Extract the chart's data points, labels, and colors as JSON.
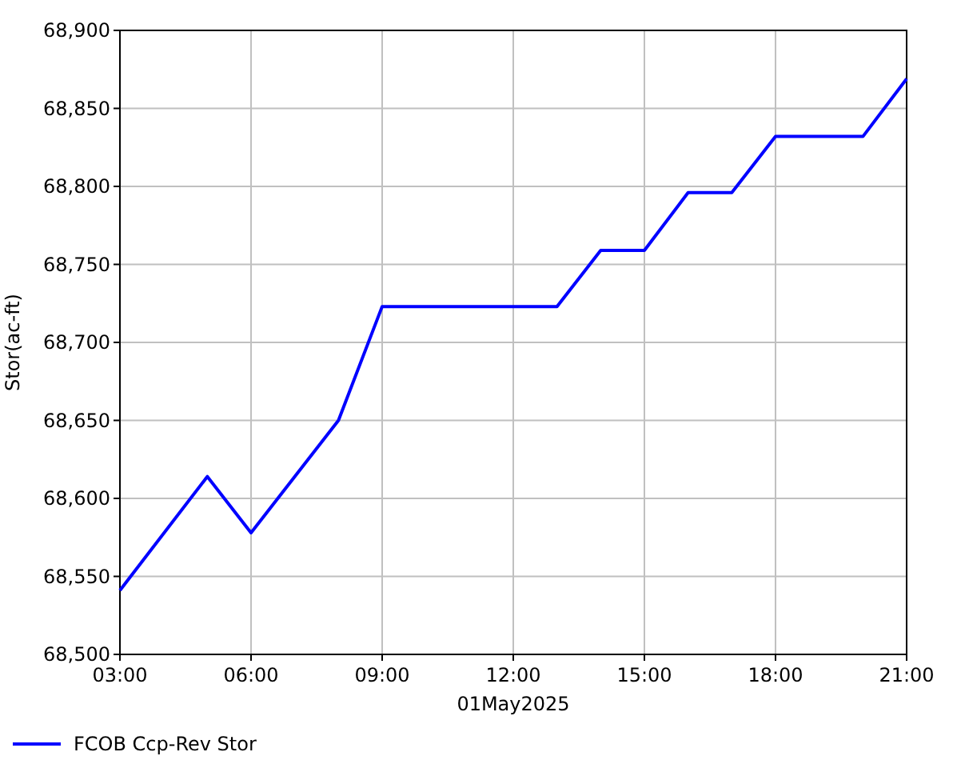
{
  "chart_data": {
    "type": "line",
    "xlabel": "01May2025",
    "ylabel": "Stor(ac-ft)",
    "x": [
      3,
      5,
      6,
      8,
      9,
      13,
      14,
      15,
      16,
      17,
      18,
      20,
      21
    ],
    "series": [
      {
        "name": "FCOB Ccp-Rev Stor",
        "color": "#0000ff",
        "values": [
          68541,
          68614,
          68578,
          68650,
          68723,
          68723,
          68759,
          68759,
          68796,
          68796,
          68832,
          68832,
          68869
        ]
      }
    ],
    "xlim": [
      3,
      21
    ],
    "xticks": [
      {
        "value": 3,
        "label": "03:00"
      },
      {
        "value": 6,
        "label": "06:00"
      },
      {
        "value": 9,
        "label": "09:00"
      },
      {
        "value": 12,
        "label": "12:00"
      },
      {
        "value": 15,
        "label": "15:00"
      },
      {
        "value": 18,
        "label": "18:00"
      },
      {
        "value": 21,
        "label": "21:00"
      }
    ],
    "ylim": [
      68500,
      68900
    ],
    "yticks": [
      {
        "value": 68500,
        "label": "68,500"
      },
      {
        "value": 68550,
        "label": "68,550"
      },
      {
        "value": 68600,
        "label": "68,600"
      },
      {
        "value": 68650,
        "label": "68,650"
      },
      {
        "value": 68700,
        "label": "68,700"
      },
      {
        "value": 68750,
        "label": "68,750"
      },
      {
        "value": 68800,
        "label": "68,800"
      },
      {
        "value": 68850,
        "label": "68,850"
      },
      {
        "value": 68900,
        "label": "68,900"
      }
    ],
    "grid": true,
    "legend": "bottom",
    "line_style": "solid",
    "marker": "none"
  }
}
